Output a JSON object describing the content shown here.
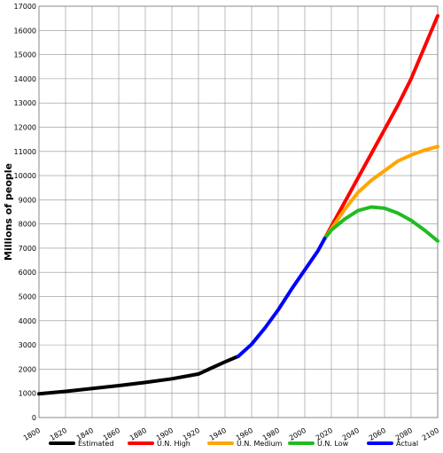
{
  "chart_data": {
    "type": "line",
    "title": "",
    "xlabel": "",
    "ylabel": "Millions of people",
    "xlim": [
      1800,
      2100
    ],
    "ylim": [
      0,
      17000
    ],
    "grid": true,
    "legend_position": "bottom",
    "x_ticks": [
      "1800",
      "1820",
      "1840",
      "1860",
      "1880",
      "1900",
      "1920",
      "1940",
      "1960",
      "1980",
      "2000",
      "2020",
      "2040",
      "2060",
      "2080",
      "2100"
    ],
    "y_ticks": [
      "0",
      "1000",
      "2000",
      "3000",
      "4000",
      "5000",
      "6000",
      "7000",
      "8000",
      "9000",
      "10000",
      "11000",
      "12000",
      "13000",
      "14000",
      "15000",
      "16000",
      "17000"
    ],
    "series": [
      {
        "name": "Estimated",
        "color": "#000000",
        "points": [
          [
            1800,
            980
          ],
          [
            1820,
            1080
          ],
          [
            1840,
            1200
          ],
          [
            1860,
            1320
          ],
          [
            1880,
            1450
          ],
          [
            1900,
            1600
          ],
          [
            1920,
            1800
          ],
          [
            1930,
            2050
          ],
          [
            1940,
            2300
          ],
          [
            1950,
            2530
          ]
        ]
      },
      {
        "name": "U.N. High",
        "color": "#ff0000",
        "points": [
          [
            2015,
            7400
          ],
          [
            2020,
            7900
          ],
          [
            2030,
            8900
          ],
          [
            2040,
            9900
          ],
          [
            2050,
            10900
          ],
          [
            2060,
            11900
          ],
          [
            2070,
            12900
          ],
          [
            2080,
            14000
          ],
          [
            2090,
            15300
          ],
          [
            2100,
            16600
          ]
        ]
      },
      {
        "name": "U.N. Medium",
        "color": "#ffa500",
        "points": [
          [
            2015,
            7400
          ],
          [
            2020,
            7800
          ],
          [
            2030,
            8600
          ],
          [
            2040,
            9300
          ],
          [
            2050,
            9800
          ],
          [
            2060,
            10200
          ],
          [
            2070,
            10600
          ],
          [
            2080,
            10850
          ],
          [
            2090,
            11050
          ],
          [
            2100,
            11200
          ]
        ]
      },
      {
        "name": "U.N. Low",
        "color": "#22bb22",
        "points": [
          [
            2015,
            7400
          ],
          [
            2020,
            7750
          ],
          [
            2030,
            8200
          ],
          [
            2040,
            8550
          ],
          [
            2050,
            8700
          ],
          [
            2060,
            8650
          ],
          [
            2070,
            8450
          ],
          [
            2080,
            8150
          ],
          [
            2090,
            7750
          ],
          [
            2100,
            7300
          ]
        ]
      },
      {
        "name": "Actual",
        "color": "#0000ff",
        "points": [
          [
            1950,
            2530
          ],
          [
            1960,
            3030
          ],
          [
            1970,
            3700
          ],
          [
            1980,
            4450
          ],
          [
            1990,
            5300
          ],
          [
            2000,
            6100
          ],
          [
            2010,
            6900
          ],
          [
            2015,
            7400
          ]
        ]
      }
    ]
  }
}
